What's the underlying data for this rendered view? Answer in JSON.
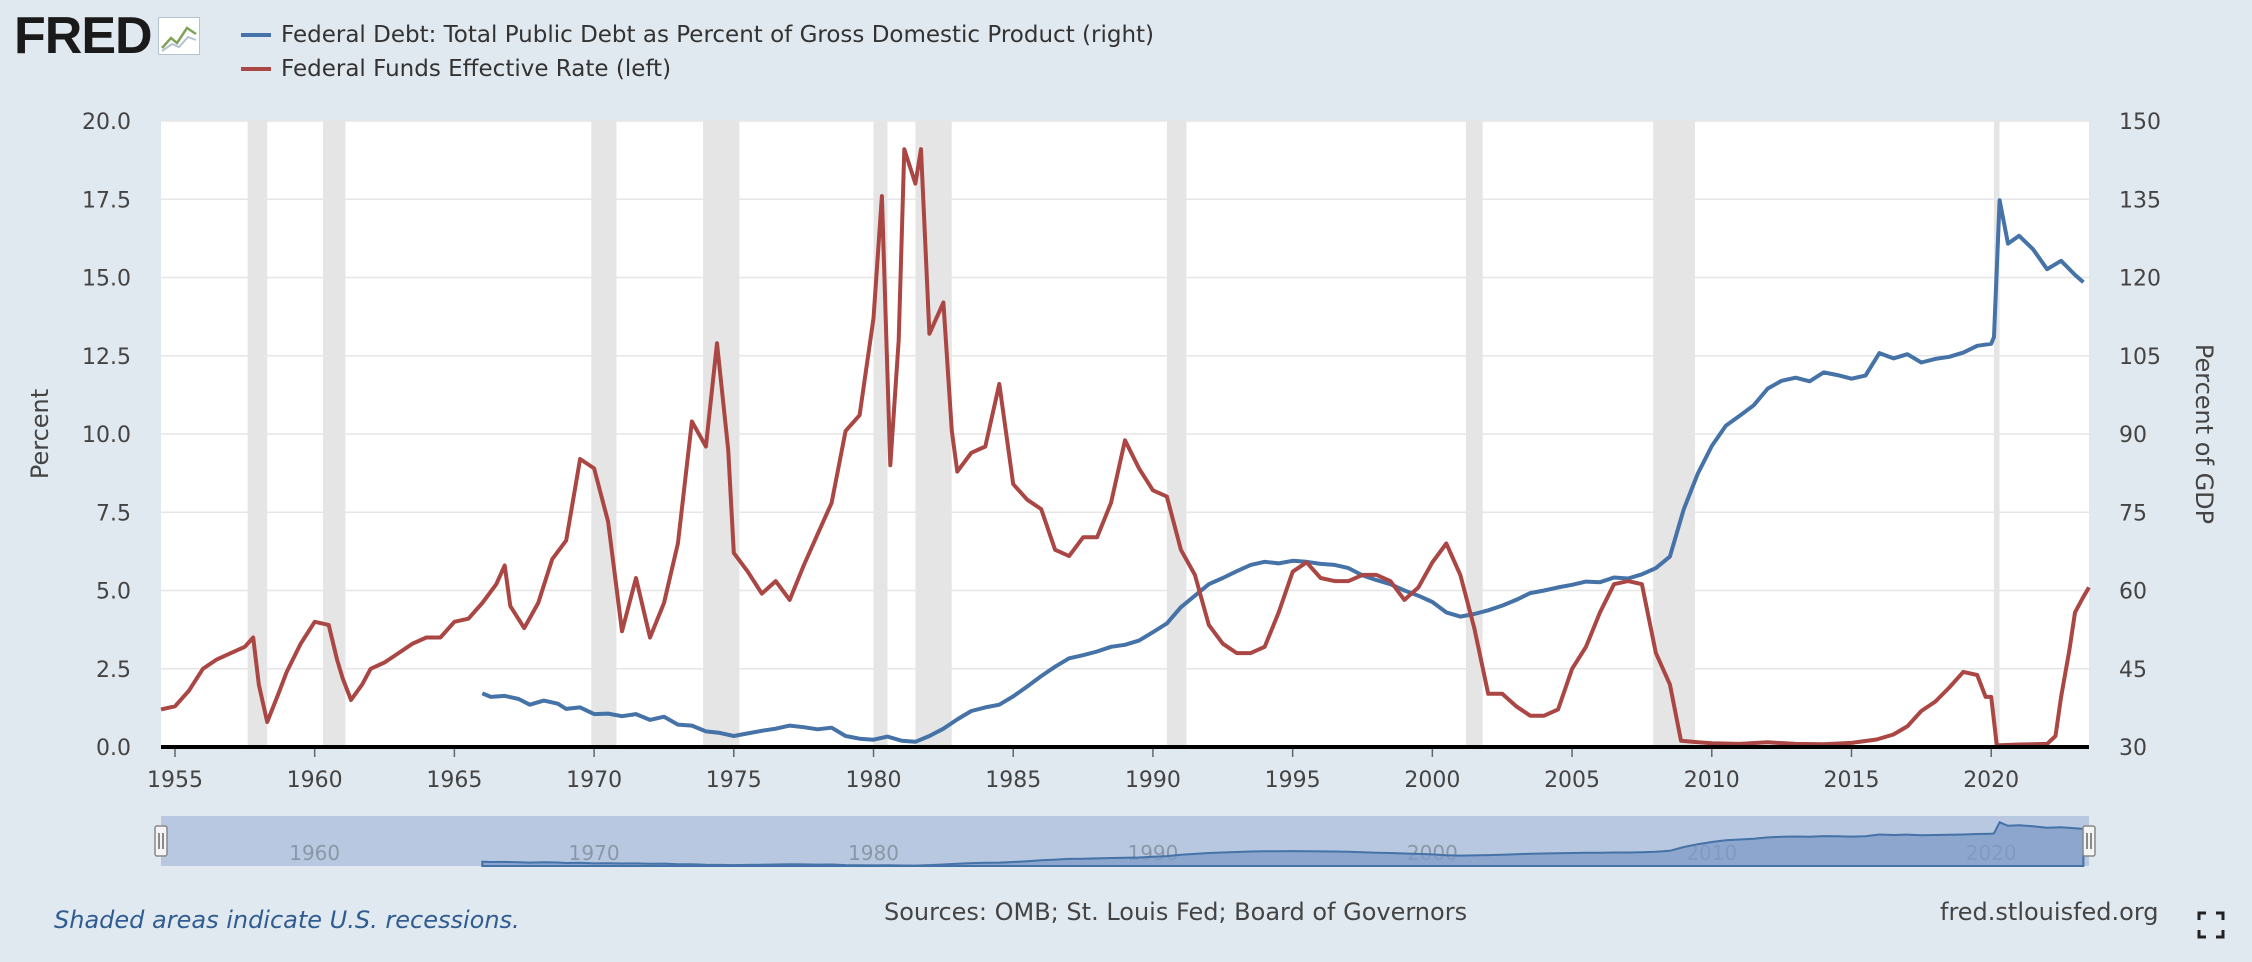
{
  "logo": {
    "text": "FRED",
    "registered": "®"
  },
  "legend": [
    {
      "label": "Federal Debt: Total Public Debt as Percent of Gross Domestic Product (right)",
      "color": "#4572a7",
      "icon": "line-swatch"
    },
    {
      "label": "Federal Funds Effective Rate (left)",
      "color": "#aa4643",
      "icon": "line-swatch"
    }
  ],
  "footer": {
    "note": "Shaded areas indicate U.S. recessions.",
    "sources": "Sources: OMB; St. Louis Fed; Board of Governors",
    "url": "fred.stlouisfed.org",
    "fullscreen_icon": "fullscreen-icon"
  },
  "chart_data": {
    "type": "line",
    "title": "",
    "xlabel": "",
    "ylabel_left": "Percent",
    "ylabel_right": "Percent of GDP",
    "xlim": [
      1954.5,
      2023.5
    ],
    "ylim_left": [
      0,
      20
    ],
    "ylim_right": [
      30,
      150
    ],
    "x_ticks": [
      1955,
      1960,
      1965,
      1970,
      1975,
      1980,
      1985,
      1990,
      1995,
      2000,
      2005,
      2010,
      2015,
      2020
    ],
    "y_ticks_left": [
      "0.0",
      "2.5",
      "5.0",
      "7.5",
      "10.0",
      "12.5",
      "15.0",
      "17.5",
      "20.0"
    ],
    "y_ticks_right": [
      "30",
      "45",
      "60",
      "75",
      "90",
      "105",
      "120",
      "135",
      "150"
    ],
    "grid": true,
    "legend_position": "top-left",
    "recessions": [
      [
        1957.6,
        1958.3
      ],
      [
        1960.3,
        1961.1
      ],
      [
        1969.9,
        1970.8
      ],
      [
        1973.9,
        1975.2
      ],
      [
        1980.0,
        1980.5
      ],
      [
        1981.5,
        1982.8
      ],
      [
        1990.5,
        1991.2
      ],
      [
        2001.2,
        2001.8
      ],
      [
        2007.9,
        2009.4
      ],
      [
        2020.1,
        2020.3
      ]
    ],
    "series": [
      {
        "name": "Federal Debt: Total Public Debt as Percent of Gross Domestic Product (right)",
        "axis": "right",
        "color": "#4572a7",
        "points": [
          [
            1966.0,
            40.3
          ],
          [
            1966.3,
            39.6
          ],
          [
            1966.8,
            39.8
          ],
          [
            1967.3,
            39.2
          ],
          [
            1967.7,
            38.1
          ],
          [
            1968.2,
            38.9
          ],
          [
            1968.7,
            38.3
          ],
          [
            1969.0,
            37.3
          ],
          [
            1969.5,
            37.6
          ],
          [
            1970.0,
            36.3
          ],
          [
            1970.5,
            36.4
          ],
          [
            1971.0,
            35.9
          ],
          [
            1971.5,
            36.3
          ],
          [
            1972.0,
            35.2
          ],
          [
            1972.5,
            35.8
          ],
          [
            1973.0,
            34.3
          ],
          [
            1973.5,
            34.1
          ],
          [
            1974.0,
            33.0
          ],
          [
            1974.5,
            32.7
          ],
          [
            1975.0,
            32.1
          ],
          [
            1975.5,
            32.6
          ],
          [
            1976.0,
            33.1
          ],
          [
            1976.5,
            33.5
          ],
          [
            1977.0,
            34.1
          ],
          [
            1977.5,
            33.8
          ],
          [
            1978.0,
            33.4
          ],
          [
            1978.5,
            33.7
          ],
          [
            1979.0,
            32.1
          ],
          [
            1979.5,
            31.6
          ],
          [
            1980.0,
            31.4
          ],
          [
            1980.5,
            32.0
          ],
          [
            1981.0,
            31.2
          ],
          [
            1981.5,
            31.0
          ],
          [
            1982.0,
            32.1
          ],
          [
            1982.5,
            33.5
          ],
          [
            1983.0,
            35.3
          ],
          [
            1983.5,
            36.9
          ],
          [
            1984.0,
            37.6
          ],
          [
            1984.5,
            38.1
          ],
          [
            1985.0,
            39.7
          ],
          [
            1985.5,
            41.6
          ],
          [
            1986.0,
            43.6
          ],
          [
            1986.5,
            45.4
          ],
          [
            1987.0,
            47.0
          ],
          [
            1987.5,
            47.6
          ],
          [
            1988.0,
            48.3
          ],
          [
            1988.5,
            49.2
          ],
          [
            1989.0,
            49.6
          ],
          [
            1989.5,
            50.4
          ],
          [
            1990.0,
            52.0
          ],
          [
            1990.5,
            53.7
          ],
          [
            1991.0,
            56.8
          ],
          [
            1991.5,
            59.0
          ],
          [
            1992.0,
            61.2
          ],
          [
            1992.5,
            62.4
          ],
          [
            1993.0,
            63.7
          ],
          [
            1993.5,
            64.9
          ],
          [
            1994.0,
            65.5
          ],
          [
            1994.5,
            65.2
          ],
          [
            1995.0,
            65.7
          ],
          [
            1995.5,
            65.5
          ],
          [
            1996.0,
            65.1
          ],
          [
            1996.5,
            64.9
          ],
          [
            1997.0,
            64.3
          ],
          [
            1997.5,
            62.9
          ],
          [
            1998.0,
            62.0
          ],
          [
            1998.5,
            61.2
          ],
          [
            1999.0,
            60.0
          ],
          [
            1999.5,
            59.0
          ],
          [
            2000.0,
            57.8
          ],
          [
            2000.5,
            55.8
          ],
          [
            2001.0,
            55.0
          ],
          [
            2001.5,
            55.5
          ],
          [
            2002.0,
            56.2
          ],
          [
            2002.5,
            57.1
          ],
          [
            2003.0,
            58.2
          ],
          [
            2003.5,
            59.5
          ],
          [
            2004.0,
            60.0
          ],
          [
            2004.5,
            60.6
          ],
          [
            2005.0,
            61.1
          ],
          [
            2005.5,
            61.7
          ],
          [
            2006.0,
            61.6
          ],
          [
            2006.5,
            62.5
          ],
          [
            2007.0,
            62.3
          ],
          [
            2007.5,
            63.1
          ],
          [
            2008.0,
            64.3
          ],
          [
            2008.5,
            66.5
          ],
          [
            2009.0,
            75.6
          ],
          [
            2009.5,
            82.4
          ],
          [
            2010.0,
            87.7
          ],
          [
            2010.5,
            91.6
          ],
          [
            2011.0,
            93.5
          ],
          [
            2011.5,
            95.5
          ],
          [
            2012.0,
            98.7
          ],
          [
            2012.5,
            100.2
          ],
          [
            2013.0,
            100.8
          ],
          [
            2013.5,
            100.1
          ],
          [
            2014.0,
            101.8
          ],
          [
            2014.5,
            101.3
          ],
          [
            2015.0,
            100.6
          ],
          [
            2015.5,
            101.2
          ],
          [
            2016.0,
            105.5
          ],
          [
            2016.5,
            104.5
          ],
          [
            2017.0,
            105.3
          ],
          [
            2017.5,
            103.7
          ],
          [
            2018.0,
            104.4
          ],
          [
            2018.5,
            104.8
          ],
          [
            2019.0,
            105.6
          ],
          [
            2019.5,
            106.9
          ],
          [
            2020.0,
            107.3
          ],
          [
            2020.1,
            108.6
          ],
          [
            2020.3,
            134.8
          ],
          [
            2020.6,
            126.5
          ],
          [
            2021.0,
            128.0
          ],
          [
            2021.5,
            125.4
          ],
          [
            2022.0,
            121.6
          ],
          [
            2022.5,
            123.2
          ],
          [
            2023.0,
            120.5
          ],
          [
            2023.3,
            119.1
          ]
        ]
      },
      {
        "name": "Federal Funds Effective Rate (left)",
        "axis": "left",
        "color": "#aa4643",
        "points": [
          [
            1954.5,
            1.2
          ],
          [
            1955.0,
            1.3
          ],
          [
            1955.5,
            1.8
          ],
          [
            1956.0,
            2.5
          ],
          [
            1956.5,
            2.8
          ],
          [
            1957.0,
            3.0
          ],
          [
            1957.5,
            3.2
          ],
          [
            1957.8,
            3.5
          ],
          [
            1958.0,
            2.0
          ],
          [
            1958.3,
            0.8
          ],
          [
            1958.7,
            1.7
          ],
          [
            1959.0,
            2.4
          ],
          [
            1959.5,
            3.3
          ],
          [
            1960.0,
            4.0
          ],
          [
            1960.5,
            3.9
          ],
          [
            1960.8,
            2.8
          ],
          [
            1961.0,
            2.2
          ],
          [
            1961.3,
            1.5
          ],
          [
            1961.7,
            2.0
          ],
          [
            1962.0,
            2.5
          ],
          [
            1962.5,
            2.7
          ],
          [
            1963.0,
            3.0
          ],
          [
            1963.5,
            3.3
          ],
          [
            1964.0,
            3.5
          ],
          [
            1964.5,
            3.5
          ],
          [
            1965.0,
            4.0
          ],
          [
            1965.5,
            4.1
          ],
          [
            1966.0,
            4.6
          ],
          [
            1966.5,
            5.2
          ],
          [
            1966.8,
            5.8
          ],
          [
            1967.0,
            4.5
          ],
          [
            1967.5,
            3.8
          ],
          [
            1968.0,
            4.6
          ],
          [
            1968.5,
            6.0
          ],
          [
            1969.0,
            6.6
          ],
          [
            1969.5,
            9.2
          ],
          [
            1970.0,
            8.9
          ],
          [
            1970.5,
            7.2
          ],
          [
            1971.0,
            3.7
          ],
          [
            1971.5,
            5.4
          ],
          [
            1972.0,
            3.5
          ],
          [
            1972.5,
            4.6
          ],
          [
            1973.0,
            6.5
          ],
          [
            1973.5,
            10.4
          ],
          [
            1974.0,
            9.6
          ],
          [
            1974.4,
            12.9
          ],
          [
            1974.8,
            9.5
          ],
          [
            1975.0,
            6.2
          ],
          [
            1975.5,
            5.6
          ],
          [
            1976.0,
            4.9
          ],
          [
            1976.5,
            5.3
          ],
          [
            1977.0,
            4.7
          ],
          [
            1977.5,
            5.8
          ],
          [
            1978.0,
            6.8
          ],
          [
            1978.5,
            7.8
          ],
          [
            1979.0,
            10.1
          ],
          [
            1979.5,
            10.6
          ],
          [
            1980.0,
            13.7
          ],
          [
            1980.3,
            17.6
          ],
          [
            1980.6,
            9.0
          ],
          [
            1980.9,
            13.0
          ],
          [
            1981.1,
            19.1
          ],
          [
            1981.5,
            18.0
          ],
          [
            1981.7,
            19.1
          ],
          [
            1982.0,
            13.2
          ],
          [
            1982.5,
            14.2
          ],
          [
            1982.8,
            10.1
          ],
          [
            1983.0,
            8.8
          ],
          [
            1983.5,
            9.4
          ],
          [
            1984.0,
            9.6
          ],
          [
            1984.5,
            11.6
          ],
          [
            1985.0,
            8.4
          ],
          [
            1985.5,
            7.9
          ],
          [
            1986.0,
            7.6
          ],
          [
            1986.5,
            6.3
          ],
          [
            1987.0,
            6.1
          ],
          [
            1987.5,
            6.7
          ],
          [
            1988.0,
            6.7
          ],
          [
            1988.5,
            7.8
          ],
          [
            1989.0,
            9.8
          ],
          [
            1989.5,
            8.9
          ],
          [
            1990.0,
            8.2
          ],
          [
            1990.5,
            8.0
          ],
          [
            1991.0,
            6.3
          ],
          [
            1991.5,
            5.5
          ],
          [
            1992.0,
            3.9
          ],
          [
            1992.5,
            3.3
          ],
          [
            1993.0,
            3.0
          ],
          [
            1993.5,
            3.0
          ],
          [
            1994.0,
            3.2
          ],
          [
            1994.5,
            4.3
          ],
          [
            1995.0,
            5.6
          ],
          [
            1995.5,
            5.9
          ],
          [
            1996.0,
            5.4
          ],
          [
            1996.5,
            5.3
          ],
          [
            1997.0,
            5.3
          ],
          [
            1997.5,
            5.5
          ],
          [
            1998.0,
            5.5
          ],
          [
            1998.5,
            5.3
          ],
          [
            1999.0,
            4.7
          ],
          [
            1999.5,
            5.1
          ],
          [
            2000.0,
            5.9
          ],
          [
            2000.5,
            6.5
          ],
          [
            2001.0,
            5.5
          ],
          [
            2001.5,
            3.8
          ],
          [
            2002.0,
            1.7
          ],
          [
            2002.5,
            1.7
          ],
          [
            2003.0,
            1.3
          ],
          [
            2003.5,
            1.0
          ],
          [
            2004.0,
            1.0
          ],
          [
            2004.5,
            1.2
          ],
          [
            2005.0,
            2.5
          ],
          [
            2005.5,
            3.2
          ],
          [
            2006.0,
            4.3
          ],
          [
            2006.5,
            5.2
          ],
          [
            2007.0,
            5.3
          ],
          [
            2007.5,
            5.2
          ],
          [
            2008.0,
            3.0
          ],
          [
            2008.5,
            2.0
          ],
          [
            2008.9,
            0.2
          ],
          [
            2009.5,
            0.15
          ],
          [
            2010.0,
            0.12
          ],
          [
            2011.0,
            0.1
          ],
          [
            2012.0,
            0.15
          ],
          [
            2013.0,
            0.1
          ],
          [
            2014.0,
            0.09
          ],
          [
            2015.0,
            0.13
          ],
          [
            2015.9,
            0.24
          ],
          [
            2016.5,
            0.4
          ],
          [
            2017.0,
            0.66
          ],
          [
            2017.5,
            1.15
          ],
          [
            2018.0,
            1.45
          ],
          [
            2018.5,
            1.9
          ],
          [
            2019.0,
            2.4
          ],
          [
            2019.5,
            2.3
          ],
          [
            2019.8,
            1.6
          ],
          [
            2020.0,
            1.6
          ],
          [
            2020.2,
            0.05
          ],
          [
            2021.0,
            0.08
          ],
          [
            2022.0,
            0.1
          ],
          [
            2022.3,
            0.35
          ],
          [
            2022.5,
            1.6
          ],
          [
            2022.8,
            3.1
          ],
          [
            2023.0,
            4.3
          ],
          [
            2023.3,
            4.8
          ],
          [
            2023.5,
            5.1
          ]
        ]
      }
    ]
  }
}
